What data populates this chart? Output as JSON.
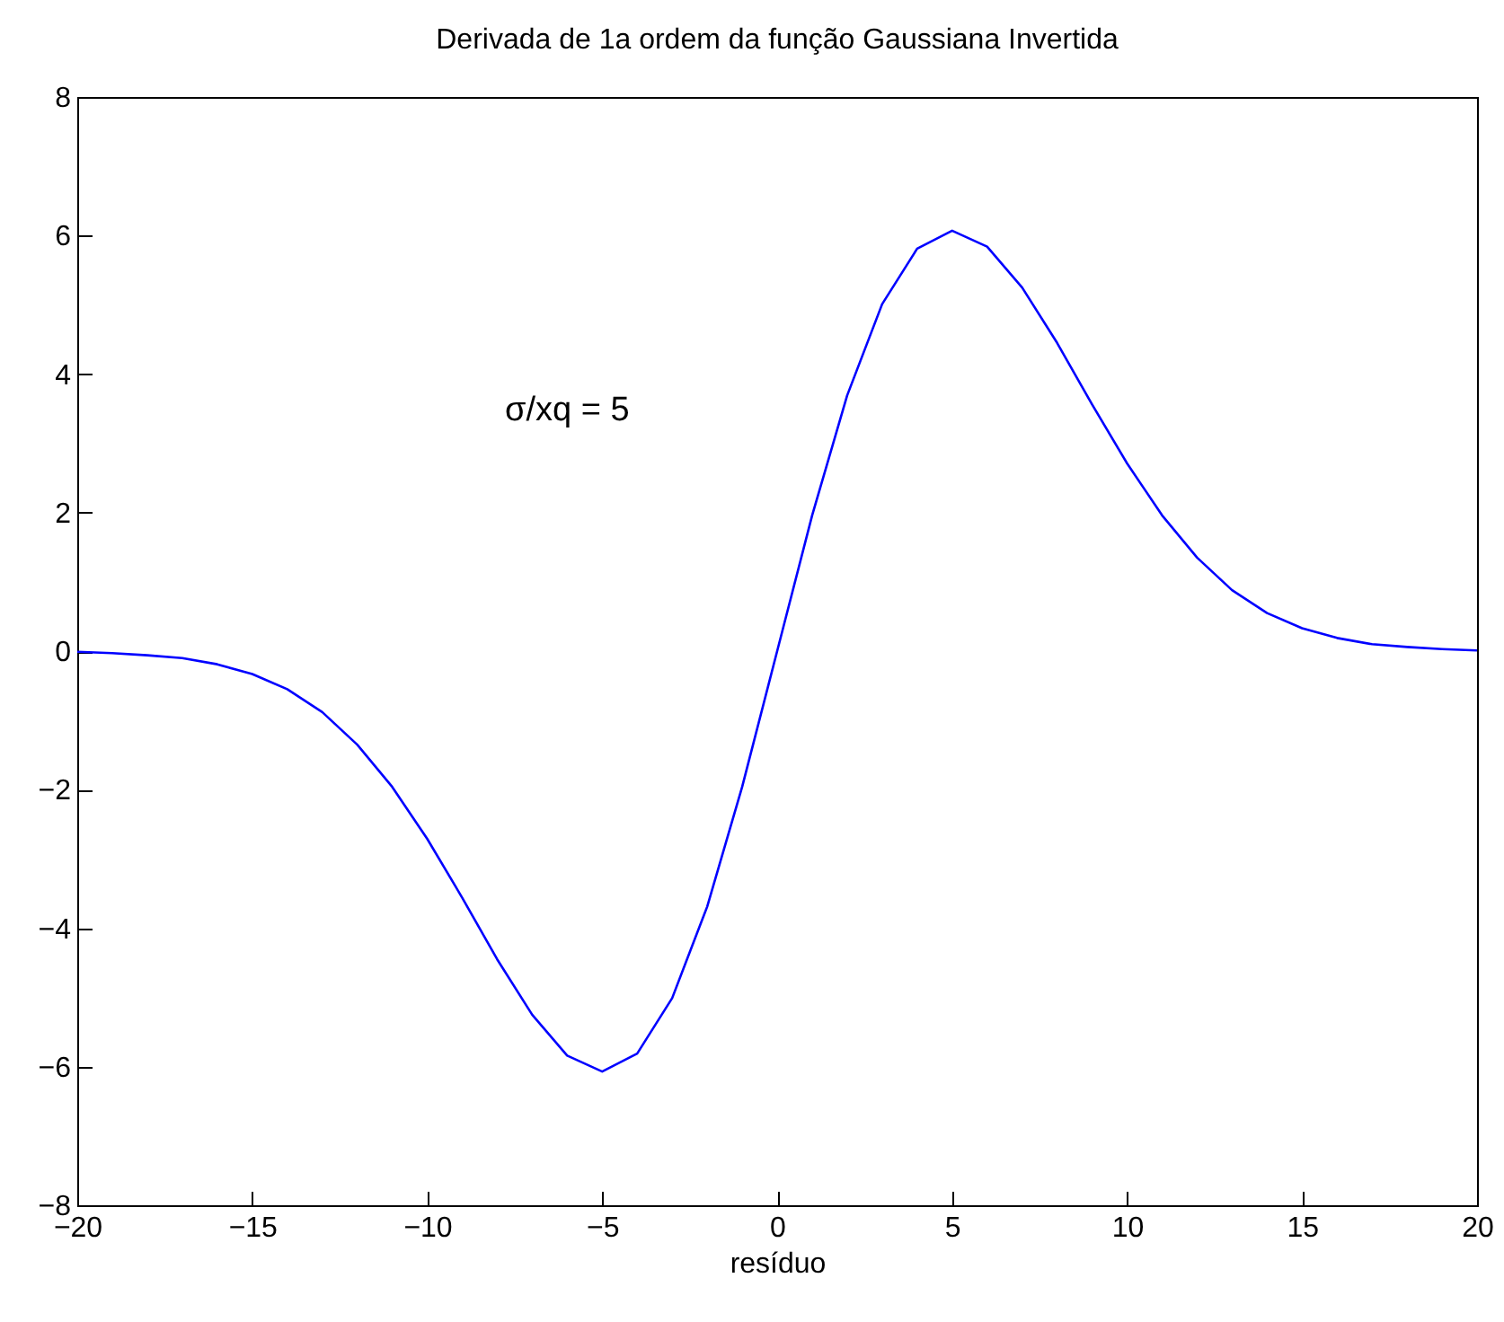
{
  "chart_data": {
    "type": "line",
    "title": "Derivada de 1a ordem da função Gaussiana Invertida",
    "xlabel": "resíduo",
    "x": [
      -20,
      -19,
      -18,
      -17,
      -16,
      -15,
      -14,
      -13,
      -12,
      -11,
      -10,
      -9,
      -8,
      -7,
      -6,
      -5,
      -4,
      -3,
      -2,
      -1,
      0,
      1,
      2,
      3,
      4,
      5,
      6,
      7,
      8,
      9,
      10,
      11,
      12,
      13,
      14,
      15,
      16,
      17,
      18,
      19,
      20
    ],
    "series": [
      {
        "color": "#0000ff",
        "values": [
          -0.01,
          -0.03,
          -0.06,
          -0.1,
          -0.19,
          -0.33,
          -0.55,
          -0.88,
          -1.35,
          -1.96,
          -2.71,
          -3.56,
          -4.45,
          -5.25,
          -5.84,
          -6.07,
          -5.81,
          -5.01,
          -3.69,
          -1.96,
          0,
          1.96,
          3.69,
          5.01,
          5.81,
          6.07,
          5.84,
          5.25,
          4.45,
          3.56,
          2.71,
          1.96,
          1.35,
          0.88,
          0.55,
          0.33,
          0.19,
          0.1,
          0.06,
          0.03,
          0.01
        ]
      }
    ],
    "xlim": [
      -20,
      20
    ],
    "xticks": [
      -20,
      -15,
      -10,
      -5,
      0,
      5,
      10,
      15,
      20
    ],
    "ylim": [
      -8,
      8
    ],
    "yticks": [
      -8,
      -6,
      -4,
      -2,
      0,
      2,
      4,
      6,
      8
    ],
    "annotations": [
      "σ/xq = 5"
    ]
  }
}
